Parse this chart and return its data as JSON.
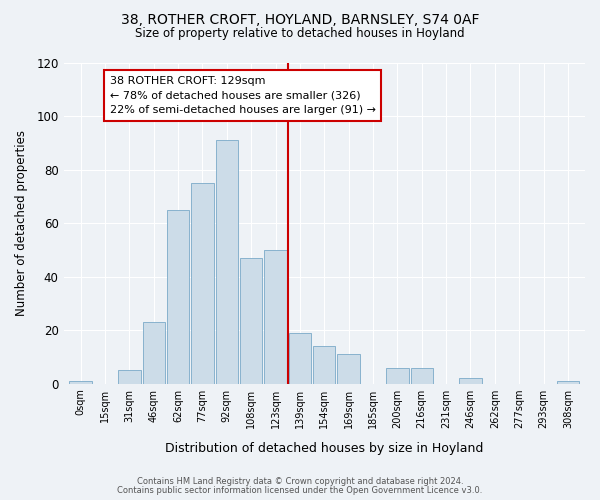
{
  "title": "38, ROTHER CROFT, HOYLAND, BARNSLEY, S74 0AF",
  "subtitle": "Size of property relative to detached houses in Hoyland",
  "xlabel": "Distribution of detached houses by size in Hoyland",
  "ylabel": "Number of detached properties",
  "bar_labels": [
    "0sqm",
    "15sqm",
    "31sqm",
    "46sqm",
    "62sqm",
    "77sqm",
    "92sqm",
    "108sqm",
    "123sqm",
    "139sqm",
    "154sqm",
    "169sqm",
    "185sqm",
    "200sqm",
    "216sqm",
    "231sqm",
    "246sqm",
    "262sqm",
    "277sqm",
    "293sqm",
    "308sqm"
  ],
  "bar_heights": [
    1,
    0,
    5,
    23,
    65,
    75,
    91,
    47,
    50,
    19,
    14,
    11,
    0,
    6,
    6,
    0,
    2,
    0,
    0,
    0,
    1
  ],
  "bar_color": "#ccdce8",
  "bar_edge_color": "#7aaac8",
  "vline_x": 8.5,
  "vline_color": "#cc0000",
  "annotation_title": "38 ROTHER CROFT: 129sqm",
  "annotation_line1": "← 78% of detached houses are smaller (326)",
  "annotation_line2": "22% of semi-detached houses are larger (91) →",
  "annotation_box_color": "#ffffff",
  "annotation_box_edge": "#cc0000",
  "footnote1": "Contains HM Land Registry data © Crown copyright and database right 2024.",
  "footnote2": "Contains public sector information licensed under the Open Government Licence v3.0.",
  "background_color": "#eef2f6",
  "ylim": [
    0,
    120
  ],
  "yticks": [
    0,
    20,
    40,
    60,
    80,
    100,
    120
  ]
}
